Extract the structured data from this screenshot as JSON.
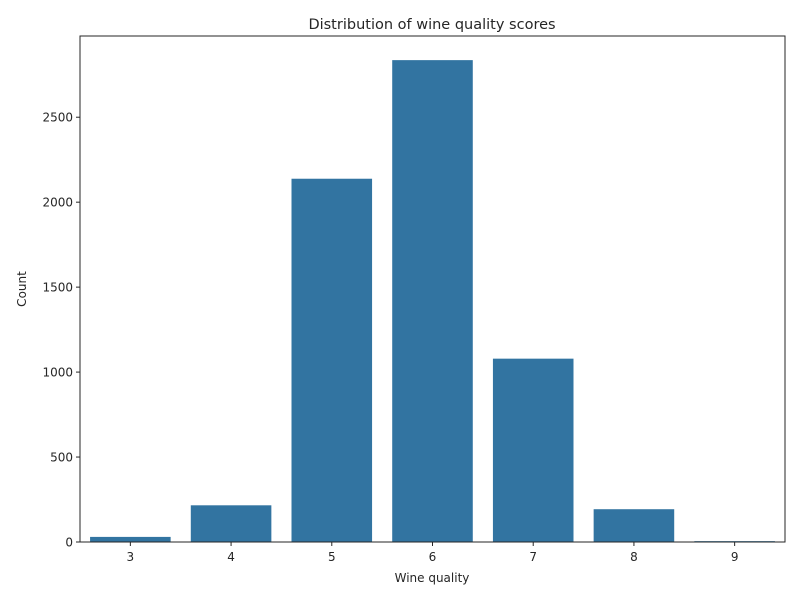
{
  "chart_data": {
    "type": "bar",
    "title": "Distribution of wine quality scores",
    "xlabel": "Wine quality",
    "ylabel": "Count",
    "categories": [
      "3",
      "4",
      "5",
      "6",
      "7",
      "8",
      "9"
    ],
    "values": [
      30,
      216,
      2138,
      2836,
      1079,
      193,
      5
    ],
    "ylim": [
      0,
      2978
    ],
    "yticks": [
      0,
      500,
      1000,
      1500,
      2000,
      2500
    ],
    "ytick_labels": [
      "0",
      "500",
      "1000",
      "1500",
      "2000",
      "2500"
    ],
    "bar_color": "#3274a1",
    "grid": false,
    "legend": "none"
  }
}
